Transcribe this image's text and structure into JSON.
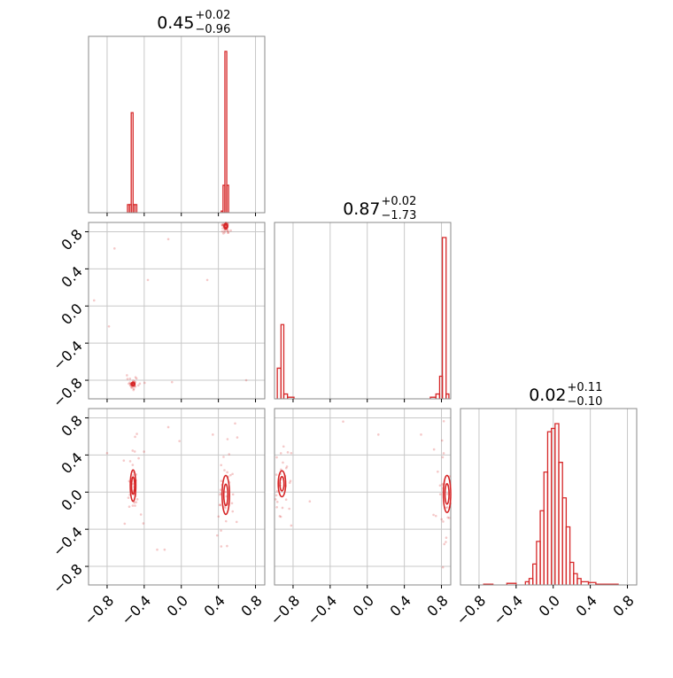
{
  "chart_data": {
    "type": "corner",
    "parameters": 3,
    "accent_color": "#d62728",
    "grid": true,
    "axis_range": [
      -1.0,
      0.9
    ],
    "titles": [
      {
        "median": "0.45",
        "plus": "+0.02",
        "minus": "−0.96"
      },
      {
        "median": "0.87",
        "plus": "+0.02",
        "minus": "−1.73"
      },
      {
        "median": "0.02",
        "plus": "+0.11",
        "minus": "−0.10"
      }
    ],
    "tick_values": [
      -0.8,
      -0.4,
      0.0,
      0.4,
      0.8
    ],
    "tick_labels": [
      "−0.8",
      "−0.4",
      "0.0",
      "0.4",
      "0.8"
    ],
    "histograms": [
      {
        "param": 0,
        "bins": [
          {
            "x0": -0.58,
            "x1": -0.56,
            "h": 0.05
          },
          {
            "x0": -0.56,
            "x1": -0.54,
            "h": 0.05
          },
          {
            "x0": -0.54,
            "x1": -0.52,
            "h": 0.62
          },
          {
            "x0": -0.52,
            "x1": -0.5,
            "h": 0.05
          },
          {
            "x0": -0.5,
            "x1": -0.48,
            "h": 0.05
          },
          {
            "x0": 0.43,
            "x1": 0.45,
            "h": 0.01
          },
          {
            "x0": 0.45,
            "x1": 0.47,
            "h": 0.17
          },
          {
            "x0": 0.47,
            "x1": 0.49,
            "h": 1.0
          },
          {
            "x0": 0.49,
            "x1": 0.51,
            "h": 0.17
          }
        ]
      },
      {
        "param": 1,
        "bins": [
          {
            "x0": -0.97,
            "x1": -0.93,
            "h": 0.19
          },
          {
            "x0": -0.93,
            "x1": -0.9,
            "h": 0.46
          },
          {
            "x0": -0.9,
            "x1": -0.86,
            "h": 0.03
          },
          {
            "x0": -0.86,
            "x1": -0.79,
            "h": 0.01
          },
          {
            "x0": 0.68,
            "x1": 0.74,
            "h": 0.01
          },
          {
            "x0": 0.74,
            "x1": 0.78,
            "h": 0.03
          },
          {
            "x0": 0.78,
            "x1": 0.81,
            "h": 0.14
          },
          {
            "x0": 0.81,
            "x1": 0.85,
            "h": 1.0
          },
          {
            "x0": 0.85,
            "x1": 0.88,
            "h": 0.03
          }
        ]
      },
      {
        "param": 2,
        "bins": [
          {
            "x0": -0.75,
            "x1": -0.65,
            "h": 0.005
          },
          {
            "x0": -0.5,
            "x1": -0.4,
            "h": 0.01
          },
          {
            "x0": -0.3,
            "x1": -0.26,
            "h": 0.02
          },
          {
            "x0": -0.26,
            "x1": -0.22,
            "h": 0.04
          },
          {
            "x0": -0.22,
            "x1": -0.18,
            "h": 0.13
          },
          {
            "x0": -0.18,
            "x1": -0.14,
            "h": 0.27
          },
          {
            "x0": -0.14,
            "x1": -0.1,
            "h": 0.46
          },
          {
            "x0": -0.1,
            "x1": -0.06,
            "h": 0.7
          },
          {
            "x0": -0.06,
            "x1": -0.02,
            "h": 0.95
          },
          {
            "x0": -0.02,
            "x1": 0.02,
            "h": 0.97
          },
          {
            "x0": 0.02,
            "x1": 0.06,
            "h": 1.0
          },
          {
            "x0": 0.06,
            "x1": 0.1,
            "h": 0.76
          },
          {
            "x0": 0.1,
            "x1": 0.14,
            "h": 0.54
          },
          {
            "x0": 0.14,
            "x1": 0.18,
            "h": 0.36
          },
          {
            "x0": 0.18,
            "x1": 0.22,
            "h": 0.14
          },
          {
            "x0": 0.22,
            "x1": 0.26,
            "h": 0.07
          },
          {
            "x0": 0.26,
            "x1": 0.3,
            "h": 0.04
          },
          {
            "x0": 0.3,
            "x1": 0.38,
            "h": 0.02
          },
          {
            "x0": 0.38,
            "x1": 0.46,
            "h": 0.015
          },
          {
            "x0": 0.46,
            "x1": 0.7,
            "h": 0.005
          }
        ]
      }
    ],
    "clusters": [
      {
        "panel": "1-0",
        "cx": -0.52,
        "cy": -0.84,
        "rx": 0.02,
        "ry": 0.02
      },
      {
        "panel": "1-0",
        "cx": 0.48,
        "cy": 0.86,
        "rx": 0.02,
        "ry": 0.03
      },
      {
        "panel": "2-0",
        "cx": -0.52,
        "cy": 0.07,
        "rx": 0.03,
        "ry": 0.17
      },
      {
        "panel": "2-0",
        "cx": 0.48,
        "cy": -0.03,
        "rx": 0.04,
        "ry": 0.21
      },
      {
        "panel": "2-1",
        "cx": -0.92,
        "cy": 0.09,
        "rx": 0.04,
        "ry": 0.14
      },
      {
        "panel": "2-1",
        "cx": 0.86,
        "cy": -0.02,
        "rx": 0.04,
        "ry": 0.2
      }
    ]
  }
}
